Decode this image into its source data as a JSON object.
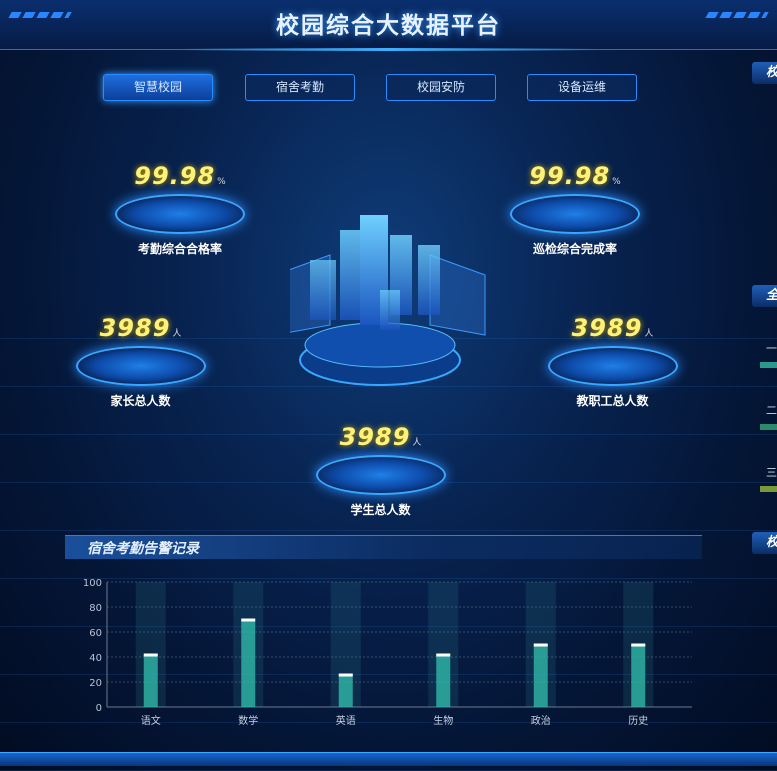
{
  "header": {
    "title": "校园综合大数据平台"
  },
  "tabs": [
    {
      "label": "智慧校园",
      "active": true
    },
    {
      "label": "宿舍考勤"
    },
    {
      "label": "校园安防"
    },
    {
      "label": "设备运维"
    }
  ],
  "stats": {
    "attendance_rate": {
      "value": "99.98",
      "unit": "%",
      "label": "考勤综合合格率"
    },
    "patrol_rate": {
      "value": "99.98",
      "unit": "%",
      "label": "巡检综合完成率"
    },
    "parents": {
      "value": "3989",
      "unit": "人",
      "label": "家长总人数"
    },
    "staff": {
      "value": "3989",
      "unit": "人",
      "label": "教职工总人数"
    },
    "students": {
      "value": "3989",
      "unit": "人",
      "label": "学生总人数"
    }
  },
  "right_panels": {
    "panel1": "校",
    "panel2": "全",
    "rows": [
      "一",
      "二",
      "三"
    ],
    "row_colors": [
      "#2a9a8a",
      "#2a8a6a",
      "#7a9a3a"
    ],
    "panel3": "校"
  },
  "chart_title": "宿舍考勤告警记录",
  "chart_data": {
    "type": "bar",
    "categories": [
      "语文",
      "数学",
      "英语",
      "生物",
      "政治",
      "历史"
    ],
    "values": [
      42,
      70,
      26,
      42,
      50,
      50
    ],
    "ylim": [
      0,
      100
    ],
    "yticks": [
      0,
      20,
      40,
      60,
      80,
      100
    ],
    "grid": true,
    "bar_color": "#2fb8a8"
  }
}
